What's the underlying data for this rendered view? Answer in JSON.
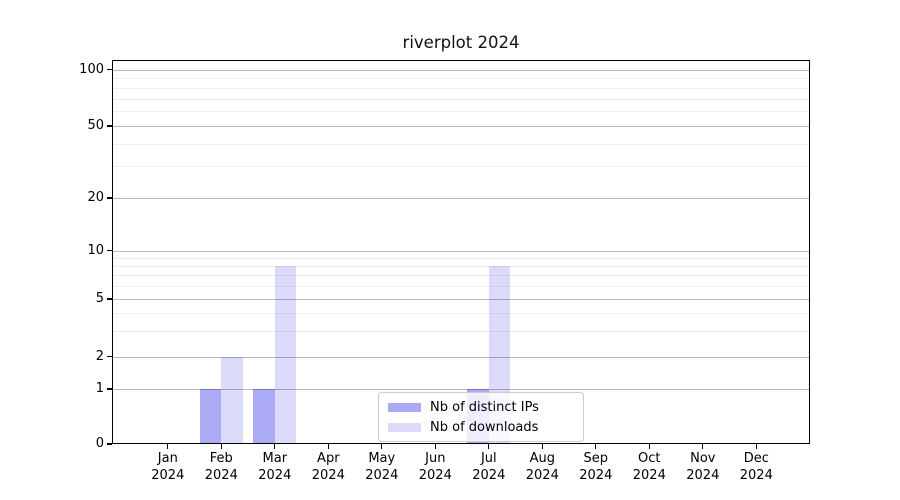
{
  "chart_data": {
    "type": "bar",
    "title": "riverplot 2024",
    "categories": [
      "Jan 2024",
      "Feb 2024",
      "Mar 2024",
      "Apr 2024",
      "May 2024",
      "Jun 2024",
      "Jul 2024",
      "Aug 2024",
      "Sep 2024",
      "Oct 2024",
      "Nov 2024",
      "Dec 2024"
    ],
    "series": [
      {
        "name": "Nb of distinct IPs",
        "color": "#aaaaf5",
        "values": [
          0,
          1,
          1,
          0,
          0,
          0,
          1,
          0,
          0,
          0,
          0,
          0
        ]
      },
      {
        "name": "Nb of downloads",
        "color": "#dbdbf9",
        "values": [
          0,
          2,
          8,
          0,
          0,
          0,
          8,
          0,
          0,
          0,
          0,
          0
        ]
      }
    ],
    "xlabel": "",
    "ylabel": "",
    "y_axis": {
      "scale": "quasi-log (linear segment 0-1, logarithmic above 1)",
      "major_ticks": [
        0,
        1,
        2,
        5,
        10,
        20,
        50,
        100
      ],
      "minor_ticks": [
        3,
        4,
        6,
        7,
        8,
        9,
        30,
        40,
        60,
        70,
        80,
        90
      ],
      "range_top": 115
    },
    "grid": {
      "horizontal_major": true,
      "horizontal_minor": true,
      "drawn_above_bars": true
    },
    "legend": {
      "position": "lower center",
      "entries": [
        "Nb of distinct IPs",
        "Nb of downloads"
      ]
    },
    "bar_layout": "pairs side-by-side centered on month ticks",
    "colors": {
      "distinct_ips": "#aaaaf5",
      "downloads": "#dbdbf9",
      "grid_major": "#bababa",
      "grid_minor": "#ededed",
      "spine": "#000000"
    }
  }
}
